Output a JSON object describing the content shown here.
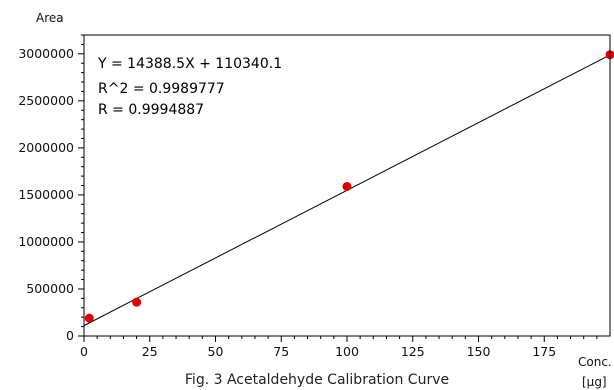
{
  "chart_data": {
    "type": "scatter",
    "title": "Fig. 3 Acetaldehyde Calibration Curve",
    "xlabel_lines": [
      "Conc.",
      "[μg]"
    ],
    "ylabel": "Area",
    "xlim": [
      0,
      200
    ],
    "ylim": [
      0,
      3200000
    ],
    "xticks": [
      0,
      25,
      50,
      75,
      100,
      125,
      150,
      175
    ],
    "yticks": [
      0,
      500000,
      1000000,
      1500000,
      2000000,
      2500000,
      3000000
    ],
    "series": [
      {
        "points": [
          {
            "x": 2,
            "y": 190000
          },
          {
            "x": 20,
            "y": 360000
          },
          {
            "x": 100,
            "y": 1590000
          },
          {
            "x": 200,
            "y": 2990000
          }
        ],
        "color": "#e00000"
      }
    ],
    "fit": {
      "slope": 14388.5,
      "intercept": 110340.1,
      "x_range": [
        0,
        200
      ],
      "color": "#000000"
    },
    "annotations": [
      "Y = 14388.5X + 110340.1",
      "R^2 = 0.9989777",
      "R = 0.9994887"
    ],
    "grid": false,
    "legend": "none"
  }
}
